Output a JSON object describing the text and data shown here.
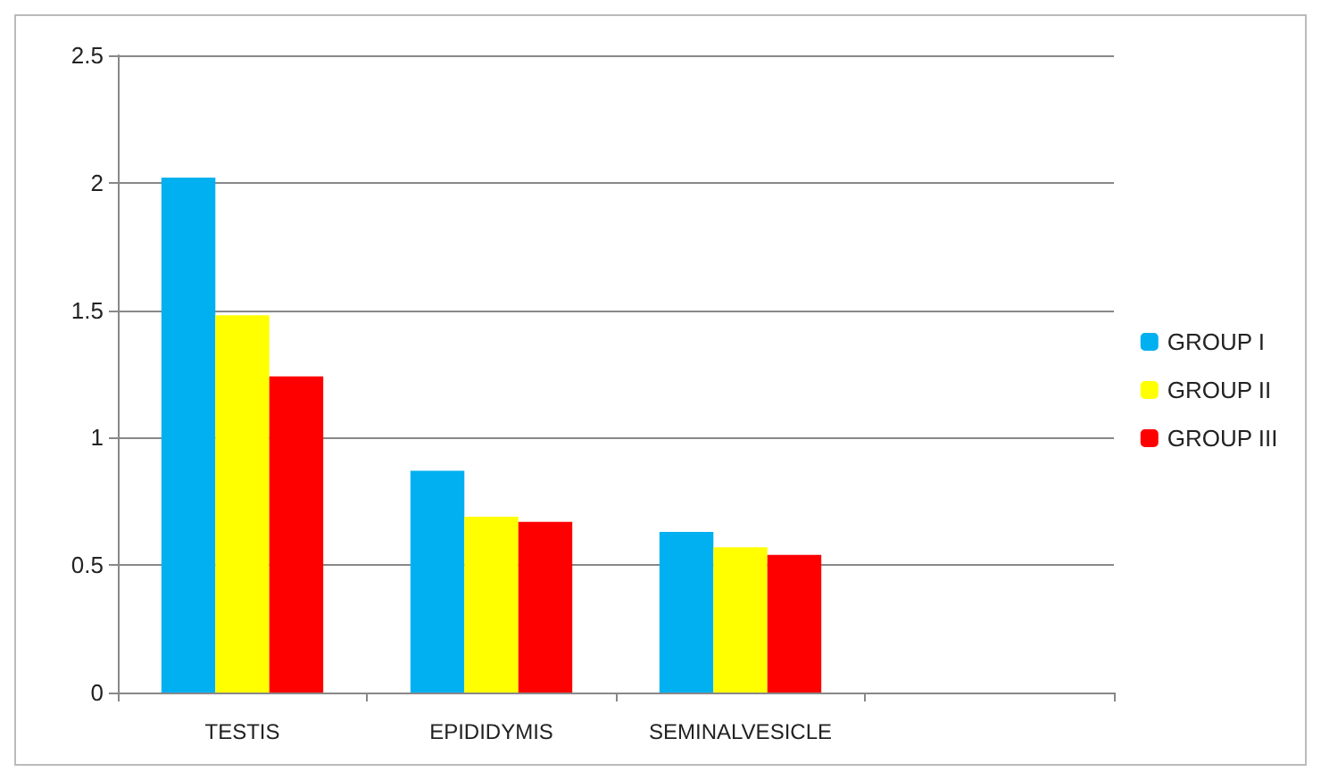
{
  "chart_data": {
    "type": "bar",
    "categories": [
      "TESTIS",
      "EPIDIDYMIS",
      "SEMINALVESICLE",
      null
    ],
    "series": [
      {
        "name": "GROUP I",
        "color": "#00b0f0",
        "values": [
          2.02,
          0.87,
          0.63,
          null
        ]
      },
      {
        "name": "GROUP II",
        "color": "#ffff00",
        "values": [
          1.48,
          0.69,
          0.57,
          null
        ]
      },
      {
        "name": "GROUP III",
        "color": "#ff0000",
        "values": [
          1.24,
          0.67,
          0.54,
          null
        ]
      }
    ],
    "ylim": [
      0,
      2.5
    ],
    "yticks": [
      0,
      0.5,
      1,
      1.5,
      2,
      2.5
    ],
    "grid": "y",
    "legend": "right"
  }
}
